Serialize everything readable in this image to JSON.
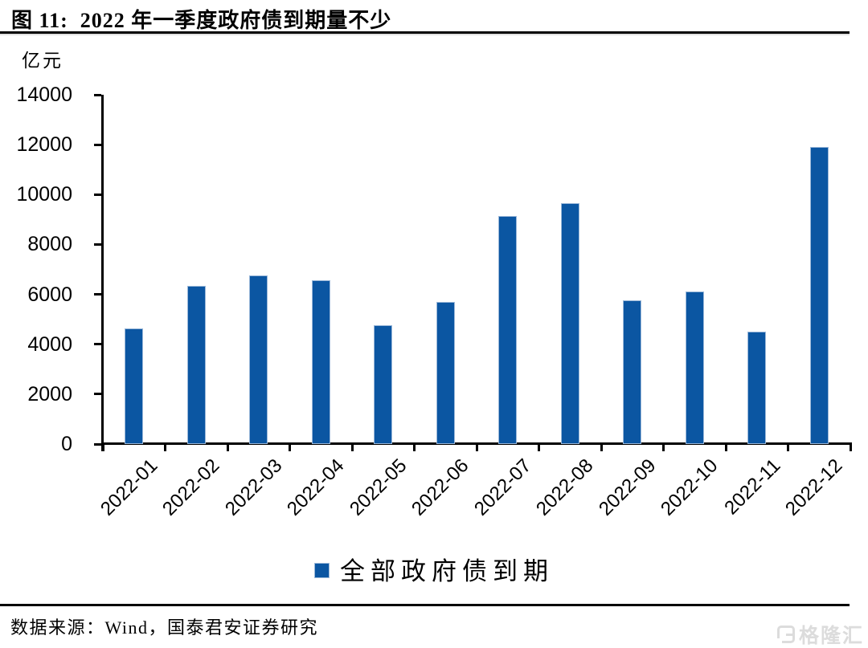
{
  "header": {
    "title": "图 11:  2022 年一季度政府债到期量不少"
  },
  "chart_data": {
    "type": "bar",
    "title": "图 11:  2022 年一季度政府债到期量不少",
    "ylabel": "亿元",
    "xlabel": "",
    "categories": [
      "2022-01",
      "2022-02",
      "2022-03",
      "2022-04",
      "2022-05",
      "2022-06",
      "2022-07",
      "2022-08",
      "2022-09",
      "2022-10",
      "2022-11",
      "2022-12"
    ],
    "series": [
      {
        "name": "全部政府债到期",
        "values": [
          4650,
          6350,
          6750,
          6550,
          4750,
          5700,
          9150,
          9650,
          5750,
          6100,
          4500,
          11900
        ]
      }
    ],
    "ylim": [
      0,
      14000
    ],
    "yticks": [
      0,
      2000,
      4000,
      6000,
      8000,
      10000,
      12000,
      14000
    ],
    "grid": "off",
    "legend_position": "bottom",
    "bar_color": "#0b56a2"
  },
  "legend": {
    "label": "全部政府债到期",
    "swatch_color": "#0b56a2"
  },
  "footer": {
    "source": "数据来源：Wind，国泰君安证券研究"
  },
  "watermark": {
    "label": "格隆汇"
  }
}
